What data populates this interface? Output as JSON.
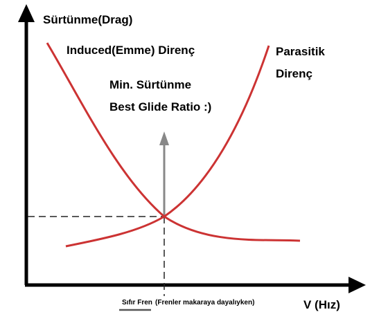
{
  "axes": {
    "y_label": "Sürtünme(Drag)",
    "x_label": "V (Hız)"
  },
  "curves": {
    "induced": "Induced(Emme) Direnç",
    "parasitic": [
      "Parasitik",
      "Direnç"
    ]
  },
  "annotation": {
    "line1": "Min. Sürtünme",
    "line2": "Best Glide Ratio :)"
  },
  "marker": {
    "label": "Sıfır Fren",
    "note": "(Frenler makaraya dayalıyken)"
  }
}
